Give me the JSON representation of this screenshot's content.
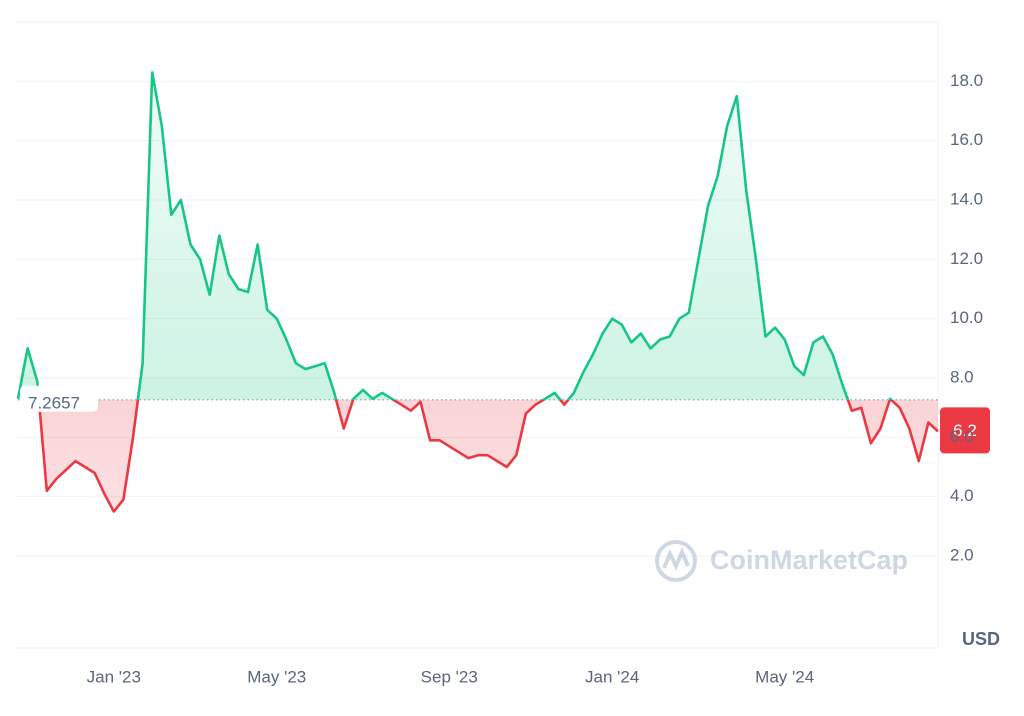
{
  "chart_data": {
    "type": "line",
    "currency": "USD",
    "watermark": "CoinMarketCap",
    "baseline": 7.2657,
    "current_price": 6.2,
    "up_color": "#16c784",
    "down_color": "#ea3943",
    "ylim": [
      -1.1,
      20
    ],
    "yticks": [
      {
        "value": 2,
        "label": "2.0"
      },
      {
        "value": 4,
        "label": "4.0"
      },
      {
        "value": 6,
        "label": "6.0"
      },
      {
        "value": 8,
        "label": "8.0"
      },
      {
        "value": 10,
        "label": "10.0"
      },
      {
        "value": 12,
        "label": "12.0"
      },
      {
        "value": 14,
        "label": "14.0"
      },
      {
        "value": 16,
        "label": "16.0"
      },
      {
        "value": 18,
        "label": "18.0"
      }
    ],
    "grid": true,
    "categories": [
      null,
      null,
      null,
      null,
      null,
      null,
      null,
      null,
      null,
      null,
      "Jan '23",
      null,
      null,
      null,
      null,
      null,
      null,
      null,
      null,
      null,
      null,
      null,
      null,
      null,
      null,
      null,
      null,
      "May '23",
      null,
      null,
      null,
      null,
      null,
      null,
      null,
      null,
      null,
      null,
      null,
      null,
      null,
      null,
      null,
      null,
      null,
      "Sep '23",
      null,
      null,
      null,
      null,
      null,
      null,
      null,
      null,
      null,
      null,
      null,
      null,
      null,
      null,
      null,
      null,
      "Jan '24",
      null,
      null,
      null,
      null,
      null,
      null,
      null,
      null,
      null,
      null,
      null,
      null,
      null,
      null,
      null,
      null,
      null,
      "May '24",
      null,
      null,
      null,
      null,
      null,
      null,
      null,
      null,
      null,
      null,
      null,
      null,
      null,
      null,
      null,
      null
    ],
    "values": [
      7.3,
      9.0,
      7.9,
      4.2,
      4.6,
      4.9,
      5.2,
      5.0,
      4.8,
      4.1,
      3.5,
      3.9,
      6.0,
      8.5,
      18.3,
      16.5,
      13.5,
      14.0,
      12.5,
      12.0,
      10.8,
      12.8,
      11.5,
      11.0,
      10.9,
      12.5,
      10.3,
      10.0,
      9.3,
      8.5,
      8.3,
      8.4,
      8.5,
      7.5,
      6.3,
      7.3,
      7.6,
      7.3,
      7.5,
      7.3,
      7.1,
      6.9,
      7.2,
      5.9,
      5.9,
      5.7,
      5.5,
      5.3,
      5.4,
      5.4,
      5.2,
      5.0,
      5.4,
      6.8,
      7.1,
      7.3,
      7.5,
      7.1,
      7.5,
      8.2,
      8.8,
      9.5,
      10.0,
      9.8,
      9.2,
      9.5,
      9.0,
      9.3,
      9.4,
      10.0,
      10.2,
      12.0,
      13.8,
      14.8,
      16.5,
      17.5,
      14.3,
      12.0,
      9.4,
      9.7,
      9.3,
      8.4,
      8.1,
      9.2,
      9.4,
      8.8,
      7.8,
      6.9,
      7.0,
      5.8,
      6.3,
      7.3,
      7.0,
      6.3,
      5.2,
      6.5,
      6.2
    ]
  }
}
